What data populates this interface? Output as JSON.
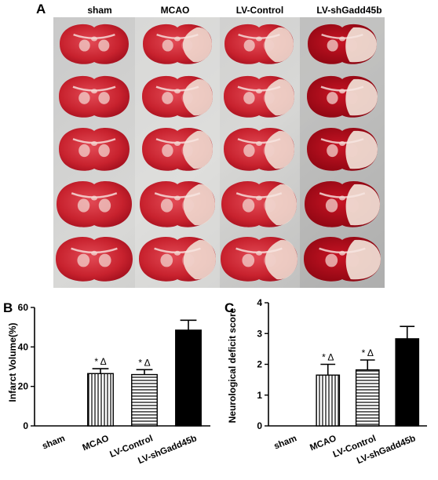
{
  "panel_a": {
    "letter": "A",
    "columns": [
      "sham",
      "MCAO",
      "LV-Control",
      "LV-shGadd45b"
    ]
  },
  "chart_data": [
    {
      "panel": "B",
      "type": "bar",
      "ylabel": "Infarct Volume(%)",
      "categories": [
        "sham",
        "MCAO",
        "LV-Control",
        "LV-shGadd45b"
      ],
      "values": [
        0,
        26.5,
        26,
        48.5
      ],
      "errors": [
        0,
        2.5,
        2.5,
        5
      ],
      "annotations": [
        "",
        "* Δ",
        "* Δ",
        ""
      ],
      "patterns": [
        "none",
        "vertical",
        "horizontal",
        "solid"
      ],
      "ylim": [
        0,
        60
      ],
      "yticks": [
        "0",
        "20",
        "40",
        "60"
      ]
    },
    {
      "panel": "C",
      "type": "bar",
      "ylabel": "Neurological deficit score",
      "categories": [
        "sham",
        "MCAO",
        "LV-Control",
        "LV-shGadd45b"
      ],
      "values": [
        0,
        1.65,
        1.82,
        2.83
      ],
      "errors": [
        0,
        0.35,
        0.32,
        0.4
      ],
      "annotations": [
        "",
        "* Δ",
        "* Δ",
        ""
      ],
      "patterns": [
        "none",
        "vertical",
        "horizontal",
        "solid"
      ],
      "ylim": [
        0,
        4
      ],
      "yticks": [
        "0",
        "1",
        "2",
        "3",
        "4"
      ]
    }
  ]
}
